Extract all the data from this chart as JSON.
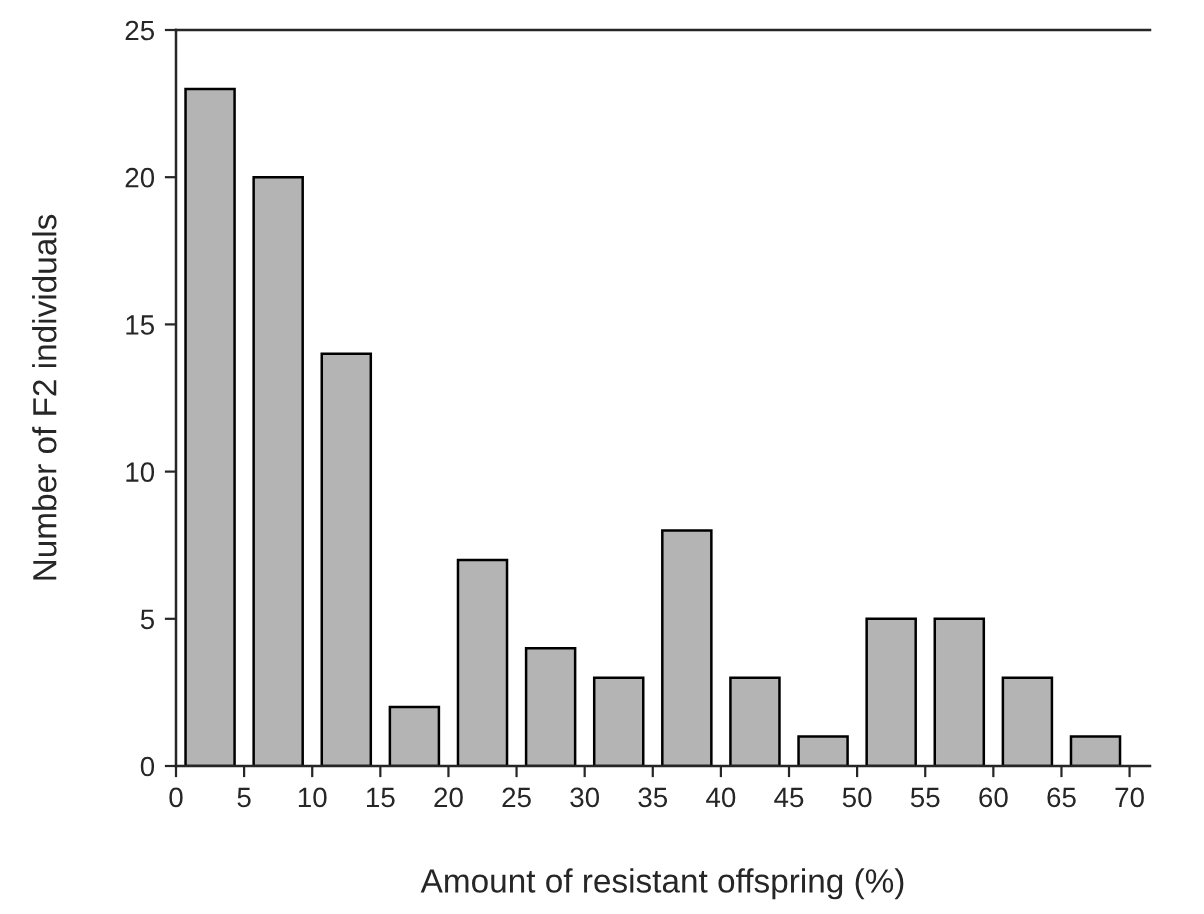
{
  "chart_data": {
    "type": "bar",
    "xlabel": "Amount of resistant offspring (%)",
    "ylabel": "Number of F2 individuals",
    "x": [
      2.5,
      7.5,
      12.5,
      17.5,
      22.5,
      27.5,
      32.5,
      37.5,
      42.5,
      47.5,
      52.5,
      57.5,
      62.5,
      67.5
    ],
    "values": [
      23,
      20,
      14,
      2,
      7,
      4,
      3,
      8,
      3,
      1,
      5,
      5,
      3,
      1
    ],
    "color": "#b4b4b4",
    "xlim": [
      0,
      71.5
    ],
    "xticks": [
      0,
      5,
      10,
      15,
      20,
      25,
      30,
      35,
      40,
      45,
      50,
      55,
      60,
      65,
      70
    ],
    "ylim": [
      0,
      25
    ],
    "yticks": [
      0,
      5,
      10,
      15,
      20,
      25
    ],
    "grid": false,
    "legend": false
  }
}
